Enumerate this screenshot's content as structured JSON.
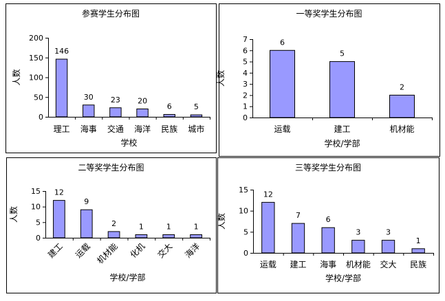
{
  "colors": {
    "bar": "#9999ff",
    "bar_stroke": "#000000",
    "axis": "#000000"
  },
  "chart_data": [
    {
      "type": "bar",
      "title": "参赛学生分布图",
      "xlabel": "学校",
      "ylabel": "人数",
      "categories": [
        "理工",
        "海事",
        "交通",
        "海洋",
        "民族",
        "城市"
      ],
      "values": [
        146,
        30,
        23,
        20,
        6,
        5
      ],
      "ylim": [
        0,
        200
      ],
      "yticks": [
        0,
        50,
        100,
        150,
        200
      ],
      "rotated_labels": false
    },
    {
      "type": "bar",
      "title": "一等奖学生分布图",
      "xlabel": "学校/学部",
      "ylabel": "人数",
      "categories": [
        "运载",
        "建工",
        "机材能"
      ],
      "values": [
        6,
        5,
        2
      ],
      "ylim": [
        0,
        7
      ],
      "yticks": [
        0,
        1,
        2,
        3,
        4,
        5,
        6,
        7
      ],
      "rotated_labels": false
    },
    {
      "type": "bar",
      "title": "二等奖学生分布图",
      "xlabel": "学校/学部",
      "ylabel": "人数",
      "categories": [
        "建工",
        "运载",
        "机材能",
        "化机",
        "交大",
        "海洋"
      ],
      "values": [
        12,
        9,
        2,
        1,
        1,
        1
      ],
      "ylim": [
        0,
        15
      ],
      "yticks": [
        0,
        5,
        10,
        15
      ],
      "rotated_labels": true
    },
    {
      "type": "bar",
      "title": "三等奖学生分布图",
      "xlabel": "学校/学部",
      "ylabel": "人数",
      "categories": [
        "运载",
        "建工",
        "海事",
        "机材能",
        "交大",
        "民族"
      ],
      "values": [
        12,
        7,
        6,
        3,
        3,
        1
      ],
      "ylim": [
        0,
        15
      ],
      "yticks": [
        0,
        5,
        10,
        15
      ],
      "rotated_labels": false
    }
  ]
}
